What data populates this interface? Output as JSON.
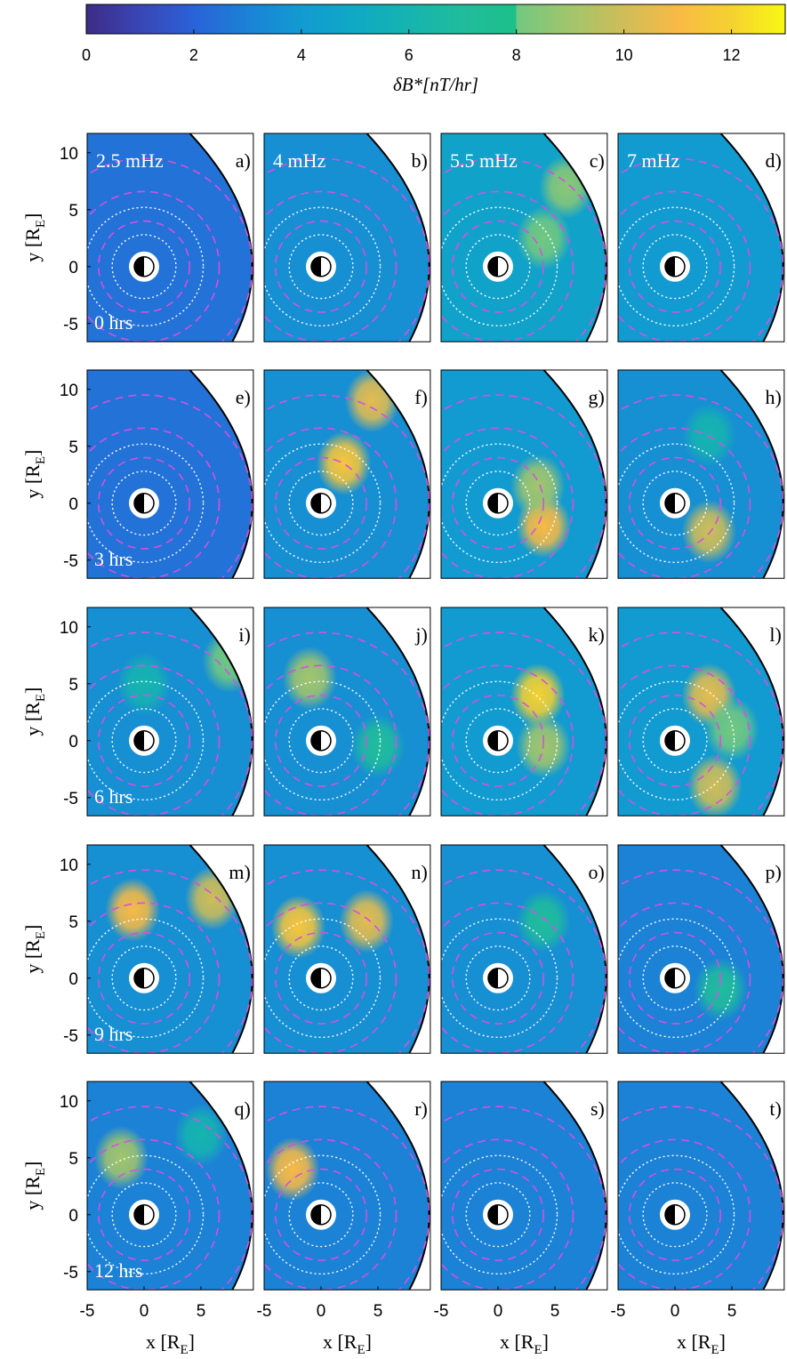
{
  "chart_data": {
    "type": "heatmap-grid",
    "colorbar": {
      "label": "δB*[nT/hr]",
      "clim": [
        0,
        13
      ],
      "ticks": [
        0,
        2,
        4,
        6,
        8,
        10,
        12
      ]
    },
    "colormap": [
      [
        0,
        "#3d2c86"
      ],
      [
        1,
        "#3946b5"
      ],
      [
        2,
        "#2a62d8"
      ],
      [
        3,
        "#1b82d6"
      ],
      [
        4,
        "#129bd0"
      ],
      [
        5,
        "#0fa9c4"
      ],
      [
        6,
        "#16b4b0"
      ],
      [
        7,
        "#20bc9c"
      ],
      [
        8,
        "#1cc08a"
      ],
      [
        8,
        "#72c880"
      ],
      [
        9,
        "#a2c56c"
      ],
      [
        10,
        "#cfbd58"
      ],
      [
        11,
        "#f8ba45"
      ],
      [
        12,
        "#f5d130"
      ],
      [
        13,
        "#f9f813"
      ]
    ],
    "xlim": [
      -5,
      9.6
    ],
    "ylim": [
      -6.6,
      11.7
    ],
    "xticks": [
      -5,
      0,
      5
    ],
    "yticks": [
      -5,
      0,
      5,
      10
    ],
    "xlabel": [
      "x [R",
      "E",
      "]"
    ],
    "ylabel": [
      "y [R",
      "E",
      "]"
    ],
    "frequencies": [
      "2.5 mHz",
      "4 mHz",
      "5.5 mHz",
      "7 mHz"
    ],
    "times": [
      "0 hrs",
      "3 hrs",
      "6 hrs",
      "9 hrs",
      "12 hrs"
    ],
    "panels": [
      {
        "label": "a)",
        "background": 2.5,
        "hotspots": []
      },
      {
        "label": "b)",
        "background": 3.5,
        "hotspots": []
      },
      {
        "label": "c)",
        "background": 4.5,
        "hotspots": [
          {
            "x": 6,
            "y": 7,
            "value": 8.5
          },
          {
            "x": 4,
            "y": 2.5,
            "value": 8
          }
        ]
      },
      {
        "label": "d)",
        "background": 4,
        "hotspots": []
      },
      {
        "label": "e)",
        "background": 2.5,
        "hotspots": []
      },
      {
        "label": "f)",
        "background": 3.5,
        "hotspots": [
          {
            "x": 2,
            "y": 3.5,
            "value": 11.5
          },
          {
            "x": 4.5,
            "y": 9,
            "value": 10.5
          }
        ]
      },
      {
        "label": "g)",
        "background": 4,
        "hotspots": [
          {
            "x": 4,
            "y": -2,
            "value": 11
          },
          {
            "x": 3.5,
            "y": 1.5,
            "value": 9
          }
        ]
      },
      {
        "label": "h)",
        "background": 3.5,
        "hotspots": [
          {
            "x": 3,
            "y": -2.5,
            "value": 10
          },
          {
            "x": 3,
            "y": 6,
            "value": 6
          }
        ]
      },
      {
        "label": "i)",
        "background": 3.5,
        "hotspots": [
          {
            "x": 7.5,
            "y": 7,
            "value": 8
          },
          {
            "x": 0,
            "y": 5,
            "value": 6
          }
        ]
      },
      {
        "label": "j)",
        "background": 3.5,
        "hotspots": [
          {
            "x": -1,
            "y": 5.5,
            "value": 9
          },
          {
            "x": 5,
            "y": -0.5,
            "value": 7
          }
        ]
      },
      {
        "label": "k)",
        "background": 4,
        "hotspots": [
          {
            "x": 3.5,
            "y": 4,
            "value": 12
          },
          {
            "x": 4,
            "y": -0.5,
            "value": 9
          }
        ]
      },
      {
        "label": "l)",
        "background": 4,
        "hotspots": [
          {
            "x": 3,
            "y": 4,
            "value": 10.5
          },
          {
            "x": 3.5,
            "y": -4,
            "value": 10
          },
          {
            "x": 5,
            "y": 1,
            "value": 8
          }
        ]
      },
      {
        "label": "m)",
        "background": 3.5,
        "hotspots": [
          {
            "x": -1,
            "y": 6,
            "value": 11
          },
          {
            "x": 6,
            "y": 7,
            "value": 10
          }
        ]
      },
      {
        "label": "n)",
        "background": 3.5,
        "hotspots": [
          {
            "x": -2,
            "y": 4.5,
            "value": 11.5
          },
          {
            "x": 4,
            "y": 5,
            "value": 10.5
          }
        ]
      },
      {
        "label": "o)",
        "background": 3.5,
        "hotspots": [
          {
            "x": 4,
            "y": 5,
            "value": 7
          }
        ]
      },
      {
        "label": "p)",
        "background": 3,
        "hotspots": [
          {
            "x": 4,
            "y": -1,
            "value": 7
          }
        ]
      },
      {
        "label": "q)",
        "background": 3,
        "hotspots": [
          {
            "x": -2,
            "y": 5,
            "value": 9
          },
          {
            "x": 5,
            "y": 7,
            "value": 6
          }
        ]
      },
      {
        "label": "r)",
        "background": 3,
        "hotspots": [
          {
            "x": -2.5,
            "y": 4,
            "value": 11
          }
        ]
      },
      {
        "label": "s)",
        "background": 3,
        "hotspots": []
      },
      {
        "label": "t)",
        "background": 3,
        "hotspots": []
      }
    ]
  }
}
